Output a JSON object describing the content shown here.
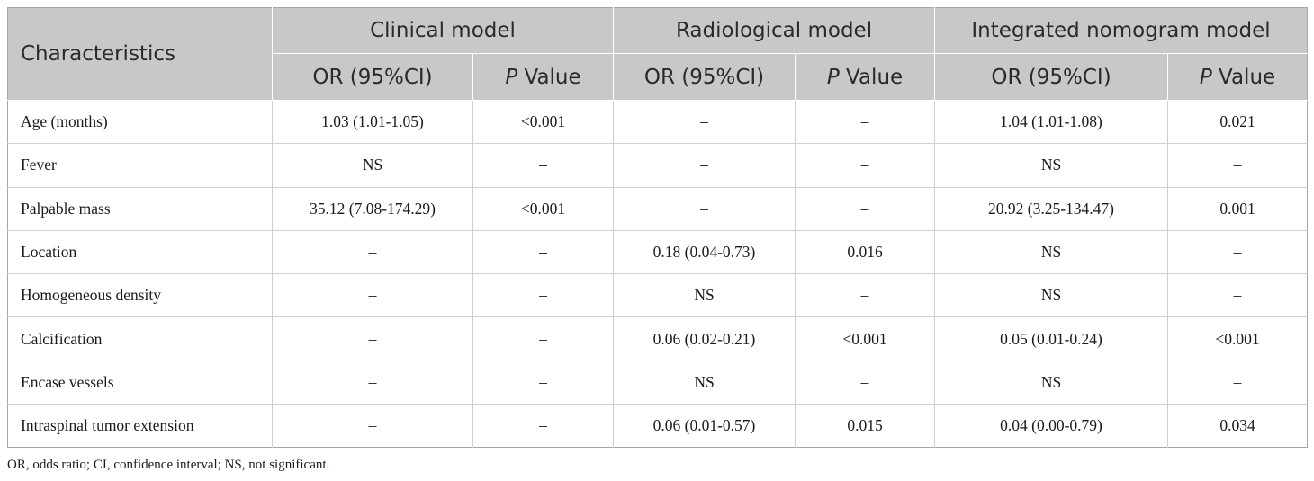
{
  "table": {
    "header": {
      "characteristics": "Characteristics",
      "groups": [
        "Clinical model",
        "Radiological model",
        "Integrated nomogram model"
      ],
      "or_label": "OR (95%CI)",
      "p_label_italic": "P",
      "p_label_rest": " Value"
    },
    "rows": [
      [
        "Age (months)",
        "1.03 (1.01-1.05)",
        "<0.001",
        "–",
        "–",
        "1.04 (1.01-1.08)",
        "0.021"
      ],
      [
        "Fever",
        "NS",
        "–",
        "–",
        "–",
        "NS",
        "–"
      ],
      [
        "Palpable mass",
        "35.12 (7.08-174.29)",
        "<0.001",
        "–",
        "–",
        "20.92 (3.25-134.47)",
        "0.001"
      ],
      [
        "Location",
        "–",
        "–",
        "0.18 (0.04-0.73)",
        "0.016",
        "NS",
        "–"
      ],
      [
        "Homogeneous density",
        "–",
        "–",
        "NS",
        "–",
        "NS",
        "–"
      ],
      [
        "Calcification",
        "–",
        "–",
        "0.06 (0.02-0.21)",
        "<0.001",
        "0.05 (0.01-0.24)",
        "<0.001"
      ],
      [
        "Encase vessels",
        "–",
        "–",
        "NS",
        "–",
        "NS",
        "–"
      ],
      [
        "Intraspinal tumor extension",
        "–",
        "–",
        "0.06 (0.01-0.57)",
        "0.015",
        "0.04 (0.00-0.79)",
        "0.034"
      ]
    ]
  },
  "footnote": "OR, odds ratio; CI, confidence interval; NS, not significant."
}
